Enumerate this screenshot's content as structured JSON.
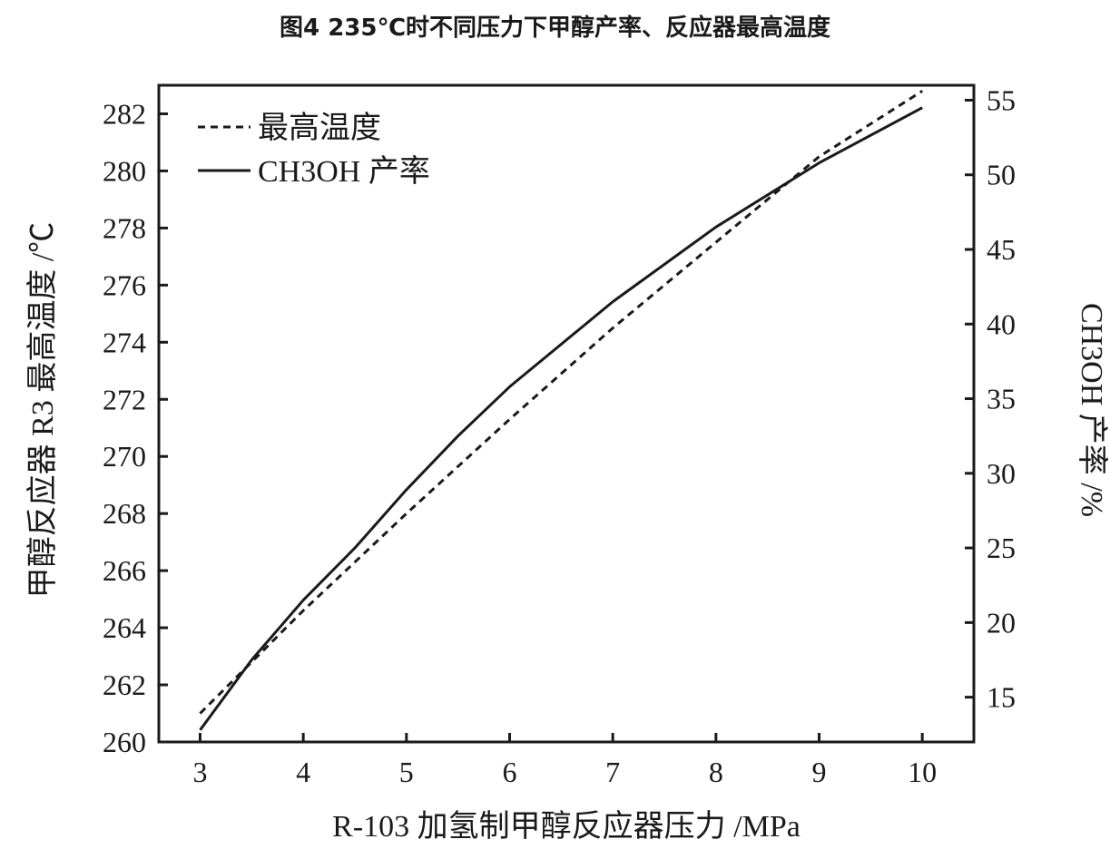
{
  "title": "图4 235℃时不同压力下甲醇产率、反应器最高温度",
  "chart_data": {
    "type": "line",
    "xlabel": "R-103 加氢制甲醇反应器压力 /MPa",
    "ylabel_left": "甲醇反应器 R3 最高温度 /℃",
    "ylabel_right": "CH3OH 产率 /%",
    "xlim": [
      2.6,
      10.5
    ],
    "ylim_left": [
      260,
      283
    ],
    "ylim_right": [
      12,
      56
    ],
    "x_ticks": [
      "3",
      "4",
      "5",
      "6",
      "7",
      "8",
      "9",
      "10"
    ],
    "y_left_ticks": [
      "260",
      "262",
      "264",
      "266",
      "268",
      "270",
      "272",
      "274",
      "276",
      "278",
      "280",
      "282"
    ],
    "y_right_ticks": [
      "15",
      "20",
      "25",
      "30",
      "35",
      "40",
      "45",
      "50",
      "55"
    ],
    "grid": false,
    "legend_position": "top-left",
    "series": [
      {
        "name": "最高温度",
        "axis": "left",
        "style": "dashed",
        "x": [
          3,
          4,
          5,
          6,
          7,
          8,
          9,
          10
        ],
        "y": [
          261.0,
          264.6,
          268.0,
          271.3,
          274.5,
          277.5,
          280.5,
          282.8
        ]
      },
      {
        "name": "CH3OH 产率",
        "axis": "right",
        "style": "solid",
        "x": [
          3,
          3.5,
          4,
          4.5,
          5,
          5.5,
          6,
          7,
          8,
          9,
          10
        ],
        "y": [
          12.8,
          17.5,
          21.5,
          25.0,
          28.9,
          32.5,
          35.8,
          41.5,
          46.5,
          50.8,
          54.5
        ]
      }
    ]
  }
}
